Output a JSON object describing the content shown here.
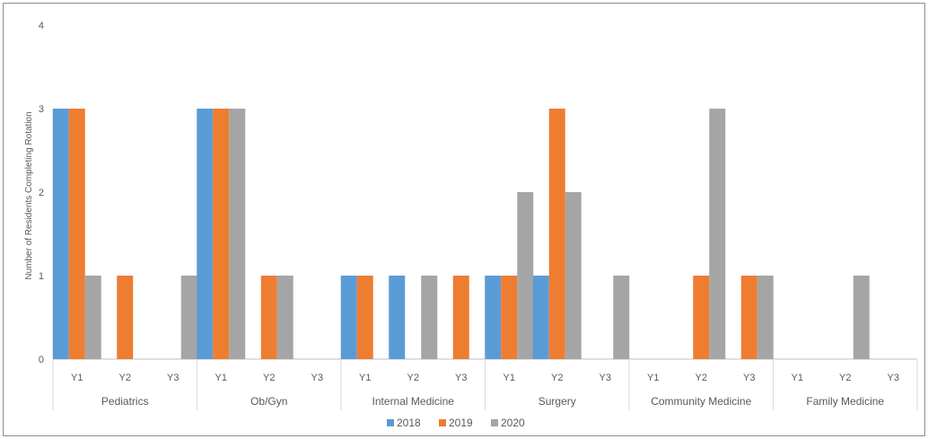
{
  "chart_data": {
    "type": "bar",
    "ylabel": "Number of Residents Completing Rotation",
    "ylim": [
      0,
      4
    ],
    "yticks": [
      "0",
      "1",
      "2",
      "3",
      "4"
    ],
    "grid": false,
    "legend_position": "bottom",
    "groups": [
      {
        "name": "Pediatrics",
        "categories": [
          "Y1",
          "Y2",
          "Y3"
        ]
      },
      {
        "name": "Ob/Gyn",
        "categories": [
          "Y1",
          "Y2",
          "Y3"
        ]
      },
      {
        "name": "Internal Medicine",
        "categories": [
          "Y1",
          "Y2",
          "Y3"
        ]
      },
      {
        "name": "Surgery",
        "categories": [
          "Y1",
          "Y2",
          "Y3"
        ]
      },
      {
        "name": "Community Medicine",
        "categories": [
          "Y1",
          "Y2",
          "Y3"
        ]
      },
      {
        "name": "Family Medicine",
        "categories": [
          "Y1",
          "Y2",
          "Y3"
        ]
      }
    ],
    "series": [
      {
        "name": "2018",
        "color": "#5b9bd5",
        "values": [
          3,
          0,
          0,
          3,
          0,
          0,
          1,
          1,
          0,
          1,
          1,
          0,
          0,
          0,
          0,
          0,
          0,
          0
        ]
      },
      {
        "name": "2019",
        "color": "#ed7d31",
        "values": [
          3,
          1,
          0,
          3,
          1,
          0,
          1,
          0,
          1,
          1,
          3,
          0,
          0,
          1,
          1,
          0,
          0,
          0
        ]
      },
      {
        "name": "2020",
        "color": "#a5a5a5",
        "values": [
          1,
          0,
          1,
          3,
          1,
          0,
          0,
          1,
          0,
          2,
          2,
          1,
          0,
          3,
          1,
          0,
          1,
          0
        ]
      }
    ]
  }
}
